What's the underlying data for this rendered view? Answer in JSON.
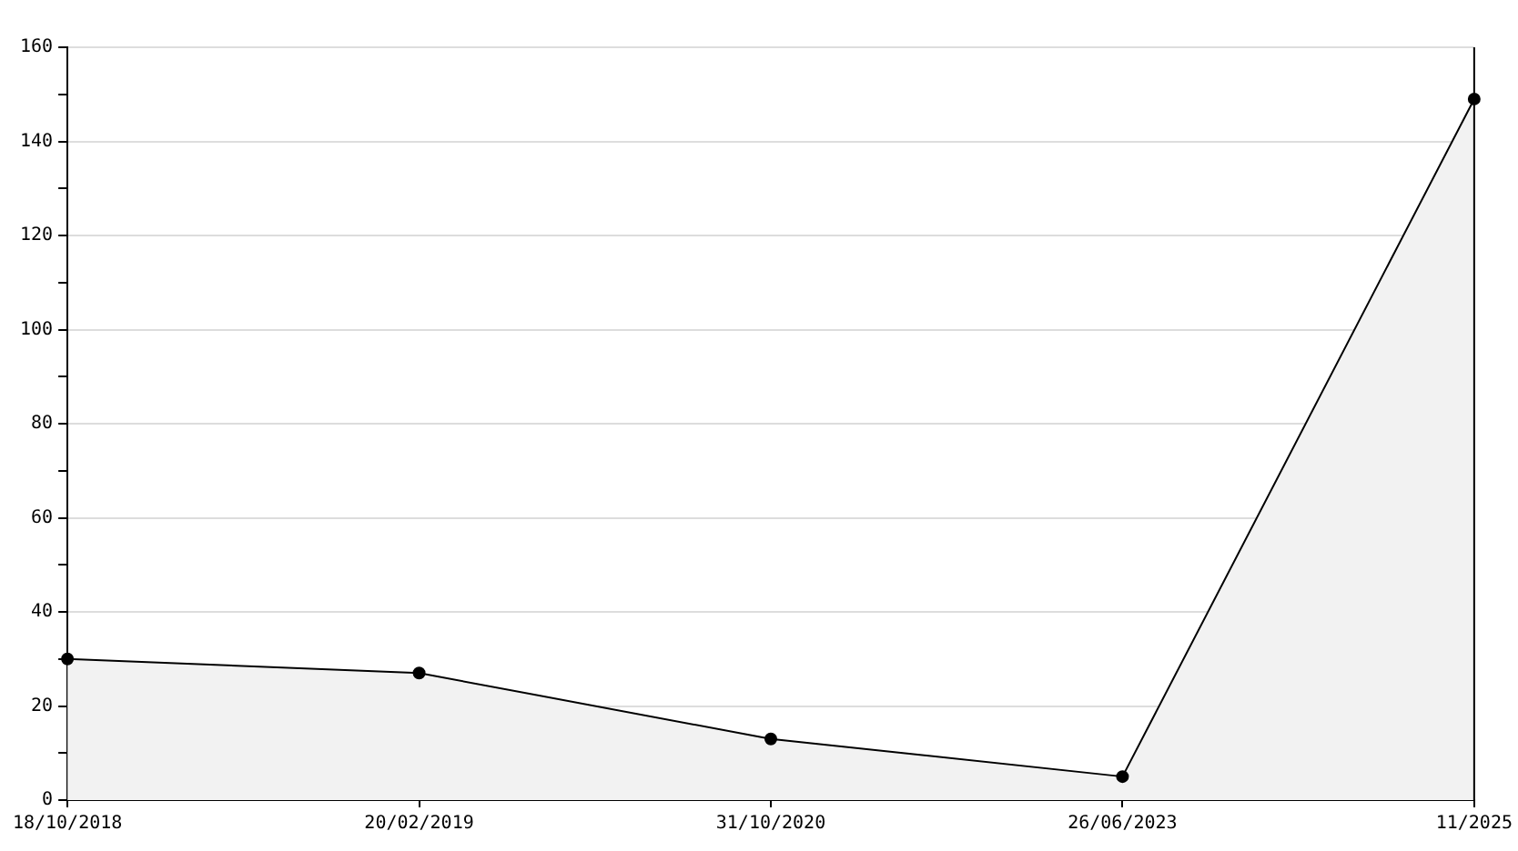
{
  "chart_data": {
    "type": "area",
    "categories": [
      "18/10/2018",
      "20/02/2019",
      "31/10/2020",
      "26/06/2023",
      "11/2025"
    ],
    "series": [
      {
        "color": "#000000",
        "values": [
          30,
          27,
          13,
          5,
          149
        ]
      }
    ],
    "ylim": [
      0,
      160
    ],
    "yticks": [
      0,
      {
        "value": 10,
        "label": null
      },
      20,
      {
        "value": 30,
        "label": null
      },
      40,
      {
        "value": 50,
        "label": null
      },
      60,
      {
        "value": 70,
        "label": null
      },
      80,
      {
        "value": 90,
        "label": null
      },
      100,
      {
        "value": 110,
        "label": null
      },
      120,
      {
        "value": 130,
        "label": null
      },
      140,
      {
        "value": 150,
        "label": null
      },
      160
    ],
    "grid": "y",
    "legend": false,
    "marker": "circle"
  }
}
